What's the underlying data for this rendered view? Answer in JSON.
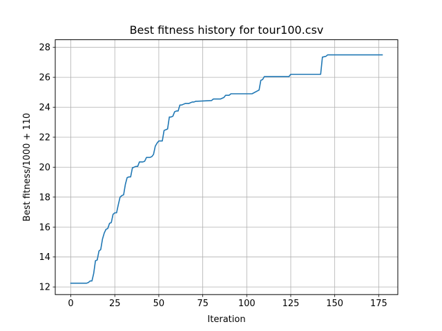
{
  "chart_data": {
    "type": "line",
    "title": "Best fitness history for tour100.csv",
    "xlabel": "Iteration",
    "ylabel": "Best fitness/1000 + 110",
    "xlim": [
      -8.85,
      185.85
    ],
    "ylim": [
      11.49,
      28.51
    ],
    "xticks": [
      0,
      25,
      50,
      75,
      100,
      125,
      150,
      175
    ],
    "yticks": [
      12,
      14,
      16,
      18,
      20,
      22,
      24,
      26,
      28
    ],
    "grid": true,
    "legend": "none",
    "series": [
      {
        "color": "#1f77b4",
        "x": [
          0,
          9,
          10,
          11,
          12,
          13,
          14,
          15,
          16,
          17,
          18,
          19,
          20,
          21,
          22,
          23,
          24,
          25,
          26,
          27,
          28,
          29,
          30,
          31,
          32,
          33,
          34,
          35,
          36,
          37,
          38,
          39,
          40,
          41,
          42,
          43,
          44,
          45,
          46,
          47,
          48,
          49,
          50,
          51,
          52,
          53,
          54,
          55,
          56,
          57,
          58,
          59,
          60,
          61,
          62,
          63,
          64,
          65,
          66,
          67,
          68,
          69,
          70,
          71,
          72,
          80,
          81,
          85,
          86,
          87,
          88,
          90,
          91,
          94,
          95,
          103,
          107,
          108,
          109,
          110,
          111,
          113,
          124,
          125,
          142,
          143,
          145,
          146,
          177
        ],
        "y": [
          12.25,
          12.25,
          12.3,
          12.4,
          12.4,
          12.9,
          13.75,
          13.8,
          14.4,
          14.5,
          15.2,
          15.6,
          15.85,
          15.9,
          16.25,
          16.3,
          16.85,
          16.95,
          16.95,
          17.5,
          18.0,
          18.1,
          18.15,
          18.85,
          19.3,
          19.35,
          19.35,
          19.95,
          20.0,
          20.05,
          20.05,
          20.35,
          20.35,
          20.35,
          20.4,
          20.65,
          20.65,
          20.65,
          20.7,
          20.85,
          21.4,
          21.6,
          21.75,
          21.75,
          21.75,
          22.45,
          22.5,
          22.55,
          23.35,
          23.35,
          23.4,
          23.7,
          23.75,
          23.75,
          24.15,
          24.15,
          24.2,
          24.25,
          24.25,
          24.25,
          24.3,
          24.35,
          24.35,
          24.4,
          24.4,
          24.45,
          24.55,
          24.55,
          24.6,
          24.65,
          24.8,
          24.8,
          24.9,
          24.9,
          24.9,
          24.9,
          25.15,
          25.8,
          25.85,
          26.05,
          26.05,
          26.05,
          26.05,
          26.2,
          26.2,
          27.35,
          27.4,
          27.5,
          27.5
        ]
      }
    ]
  }
}
